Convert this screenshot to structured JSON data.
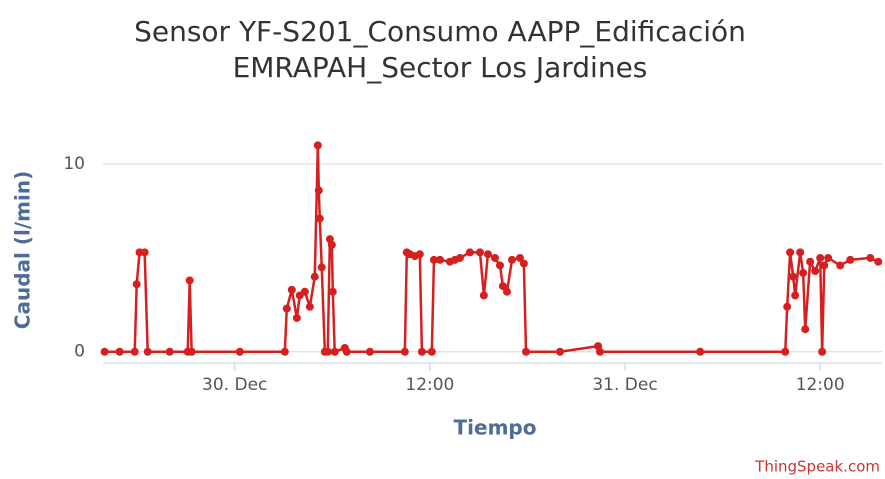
{
  "chart_data": {
    "type": "line",
    "title": [
      "Sensor YF-S201_Consumo AAPP_Edificación",
      "EMRAPAH_Sector Los Jardines"
    ],
    "x_label": "Tiempo",
    "y_label": "Caudal (l/min)",
    "credit": "ThingSpeak.com",
    "xlim": [
      -8.1,
      39.8
    ],
    "xticks": [
      {
        "value": 0,
        "label": "30. Dec"
      },
      {
        "value": 12,
        "label": "12:00"
      },
      {
        "value": 24,
        "label": "31. Dec"
      },
      {
        "value": 36,
        "label": "12:00"
      }
    ],
    "ylim": [
      -0.6,
      11.5
    ],
    "yticks": [
      0,
      10
    ],
    "grid": true,
    "series": [
      {
        "name": "Caudal",
        "color": "#d62020",
        "x": [
          -8,
          -7.08,
          -6.15,
          -6.03,
          -5.85,
          -5.54,
          -5.35,
          -4,
          -2.89,
          -2.77,
          -2.65,
          0.31,
          3.08,
          3.2,
          3.51,
          3.82,
          4.0,
          4.31,
          4.62,
          4.92,
          5.11,
          5.17,
          5.23,
          5.35,
          5.54,
          5.72,
          5.85,
          5.97,
          6.03,
          6.15,
          6.77,
          6.89,
          8.31,
          10.46,
          10.58,
          10.77,
          11.08,
          11.38,
          11.51,
          12.12,
          12.25,
          12.62,
          13.23,
          13.54,
          13.85,
          14.46,
          15.08,
          15.32,
          15.57,
          16.0,
          16.31,
          16.49,
          16.74,
          17.05,
          17.54,
          17.78,
          17.91,
          20,
          22.34,
          22.46,
          28.62,
          33.85,
          33.97,
          34.15,
          34.34,
          34.46,
          34.77,
          34.95,
          35.08,
          35.38,
          35.69,
          36.0,
          36.12,
          36.25,
          36.49,
          37.23,
          37.85,
          39.08,
          39.57
        ],
        "values": [
          0,
          0,
          0,
          3.6,
          5.3,
          5.3,
          0,
          0,
          0,
          3.8,
          0,
          0,
          0,
          2.3,
          3.3,
          1.8,
          3.0,
          3.2,
          2.4,
          4.0,
          11,
          8.6,
          7.1,
          4.5,
          0,
          0,
          6.0,
          5.7,
          3.2,
          0,
          0.2,
          0,
          0,
          0,
          5.3,
          5.2,
          5.1,
          5.2,
          0,
          0,
          4.9,
          4.9,
          4.8,
          4.9,
          5.0,
          5.3,
          5.3,
          3.0,
          5.2,
          5.0,
          4.6,
          3.5,
          3.2,
          4.9,
          5.0,
          4.7,
          0,
          0,
          0.3,
          0,
          0,
          0,
          2.4,
          5.3,
          4.0,
          3.0,
          5.3,
          4.2,
          1.2,
          4.8,
          4.3,
          5.0,
          0,
          4.6,
          5.0,
          4.6,
          4.9,
          5.0,
          4.8
        ]
      }
    ]
  }
}
